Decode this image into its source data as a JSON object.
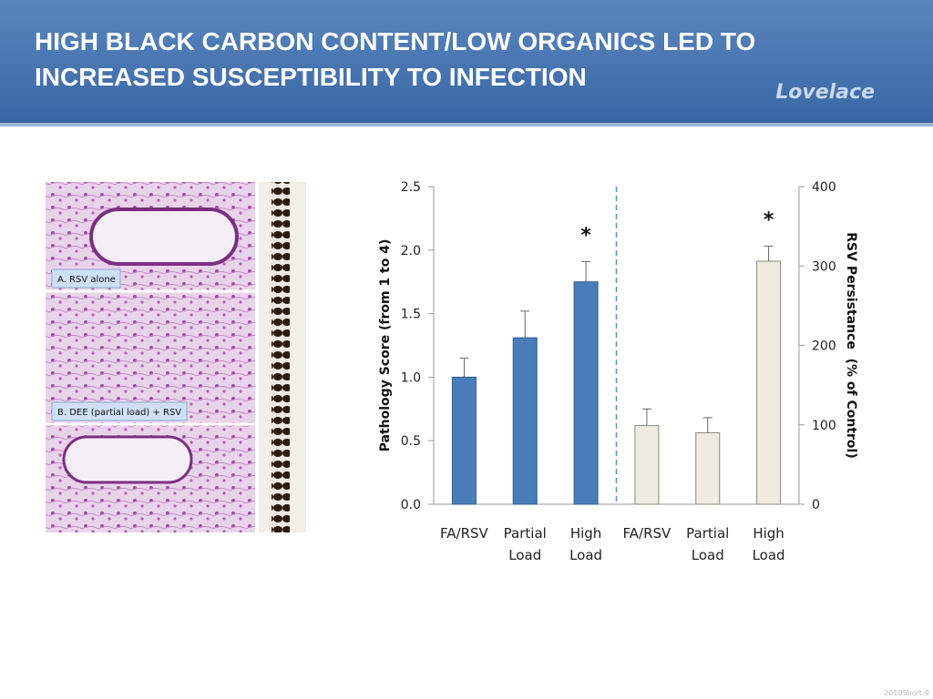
{
  "header": {
    "title": "HIGH BLACK CARBON CONTENT/LOW ORGANICS LED TO INCREASED SUSCEPTIBILITY TO INFECTION",
    "logo": "Lovelace"
  },
  "panels": [
    {
      "label": "A. RSV alone"
    },
    {
      "label": "B. DEE (partial load) + RSV"
    }
  ],
  "footer": "2010Short-9",
  "chart_data": {
    "type": "bar",
    "categories": [
      "FA/RSV",
      "Partial Load",
      "High Load",
      "FA/RSV",
      "Partial Load",
      "High Load"
    ],
    "series": [
      {
        "color": "#4a7ebb",
        "values": [
          1.0,
          1.31,
          1.75,
          null,
          null,
          null
        ],
        "errors": [
          0.15,
          0.21,
          0.16,
          null,
          null,
          null
        ],
        "markers": [
          null,
          null,
          "*",
          null,
          null,
          null
        ]
      },
      {
        "color": "#eeece1",
        "axis": "y2",
        "values": [
          null,
          null,
          null,
          99,
          90,
          306
        ],
        "errors": [
          null,
          null,
          null,
          21,
          19,
          19
        ],
        "markers": [
          null,
          null,
          null,
          null,
          null,
          "*"
        ]
      }
    ],
    "ylabel": "Pathology Score (from 1 to 4)",
    "y2label": "RSV Persistance  (% of Control)",
    "ylim": [
      0,
      2.5
    ],
    "yticks": [
      {
        "value": 0,
        "label": "0.0"
      },
      0.5,
      {
        "value": 1,
        "label": "1.0"
      },
      1.5,
      {
        "value": 2,
        "label": "2.0"
      },
      2.5
    ],
    "y2lim": [
      0,
      400
    ],
    "y2ticks": [
      0,
      100,
      200,
      300,
      400
    ]
  }
}
